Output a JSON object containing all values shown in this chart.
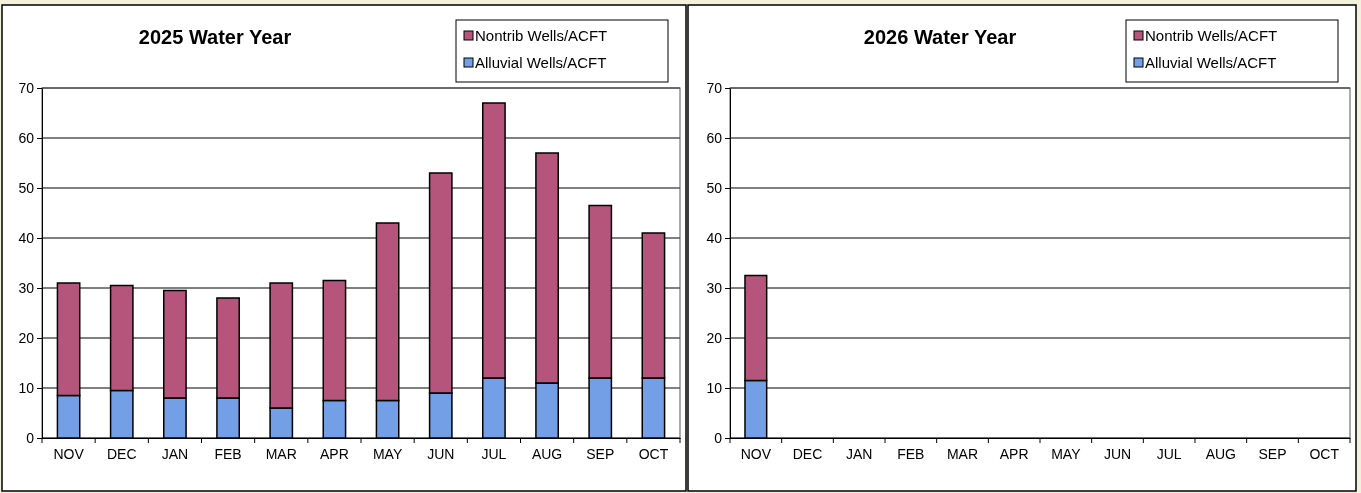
{
  "chart_data": [
    {
      "type": "bar",
      "title": "2025 Water Year",
      "categories": [
        "NOV",
        "DEC",
        "JAN",
        "FEB",
        "MAR",
        "APR",
        "MAY",
        "JUN",
        "JUL",
        "AUG",
        "SEP",
        "OCT"
      ],
      "stacked": true,
      "legend": "top right",
      "grid": "y",
      "ylim": [
        0,
        70
      ],
      "yticks": [
        0,
        10,
        20,
        30,
        40,
        50,
        60,
        70
      ],
      "series": [
        {
          "name": "Alluvial Wells/ACFT",
          "color": "#739fe6",
          "values": [
            8.5,
            9.5,
            8,
            8,
            6,
            7.5,
            7.5,
            9,
            12,
            11,
            12,
            12
          ]
        },
        {
          "name": "Nontrib Wells/ACFT",
          "color": "#b5557b",
          "values": [
            22.5,
            21,
            21.5,
            20,
            25,
            24,
            35.5,
            44,
            55,
            46,
            34.5,
            29
          ]
        }
      ]
    },
    {
      "type": "bar",
      "title": "2026 Water Year",
      "categories": [
        "NOV",
        "DEC",
        "JAN",
        "FEB",
        "MAR",
        "APR",
        "MAY",
        "JUN",
        "JUL",
        "AUG",
        "SEP",
        "OCT"
      ],
      "stacked": true,
      "legend": "top right",
      "grid": "y",
      "ylim": [
        0,
        70
      ],
      "yticks": [
        0,
        10,
        20,
        30,
        40,
        50,
        60,
        70
      ],
      "series": [
        {
          "name": "Alluvial Wells/ACFT",
          "color": "#739fe6",
          "values": [
            11.5,
            null,
            null,
            null,
            null,
            null,
            null,
            null,
            null,
            null,
            null,
            null
          ]
        },
        {
          "name": "Nontrib Wells/ACFT",
          "color": "#b5557b",
          "values": [
            21,
            null,
            null,
            null,
            null,
            null,
            null,
            null,
            null,
            null,
            null,
            null
          ]
        }
      ]
    }
  ]
}
